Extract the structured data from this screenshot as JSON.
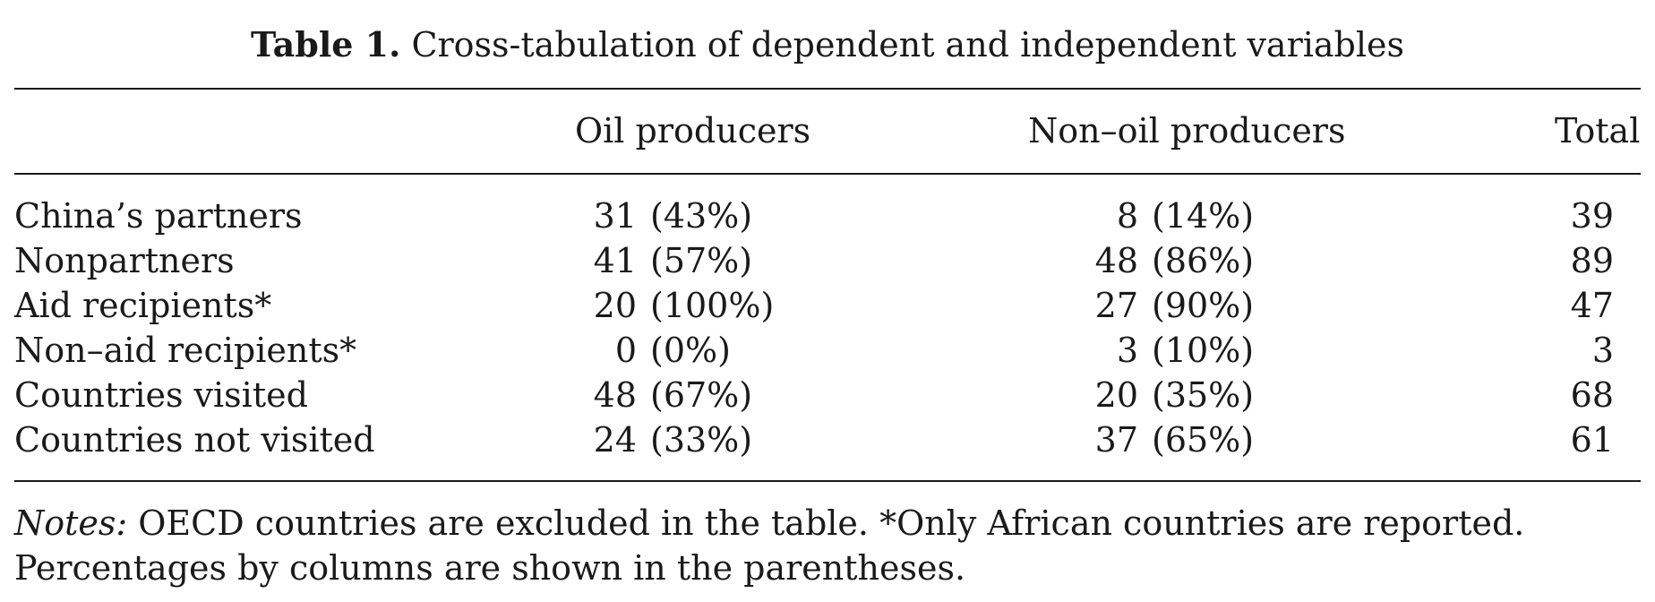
{
  "caption": {
    "label": "Table 1.",
    "title": "Cross-tabulation of dependent and independent variables"
  },
  "columns": {
    "oil": "Oil producers",
    "nonoil": "Non–oil producers",
    "total": "Total"
  },
  "rows": [
    {
      "label": "China’s partners",
      "oil_n": "31",
      "oil_pct": "(43%)",
      "nonoil_n": "8",
      "nonoil_pct": "(14%)",
      "total": "39"
    },
    {
      "label": "Nonpartners",
      "oil_n": "41",
      "oil_pct": "(57%)",
      "nonoil_n": "48",
      "nonoil_pct": "(86%)",
      "total": "89"
    },
    {
      "label": "Aid recipients*",
      "oil_n": "20",
      "oil_pct": "(100%)",
      "nonoil_n": "27",
      "nonoil_pct": "(90%)",
      "total": "47"
    },
    {
      "label": "Non–aid recipients*",
      "oil_n": "0",
      "oil_pct": "(0%)",
      "nonoil_n": "3",
      "nonoil_pct": "(10%)",
      "total": "3"
    },
    {
      "label": "Countries visited",
      "oil_n": "48",
      "oil_pct": "(67%)",
      "nonoil_n": "20",
      "nonoil_pct": "(35%)",
      "total": "68"
    },
    {
      "label": "Countries not visited",
      "oil_n": "24",
      "oil_pct": "(33%)",
      "nonoil_n": "37",
      "nonoil_pct": "(65%)",
      "total": "61"
    }
  ],
  "notes": {
    "label": "Notes:",
    "text": " OECD countries are excluded in the table. *Only African countries are reported. Percentages by columns are shown in the parentheses."
  }
}
